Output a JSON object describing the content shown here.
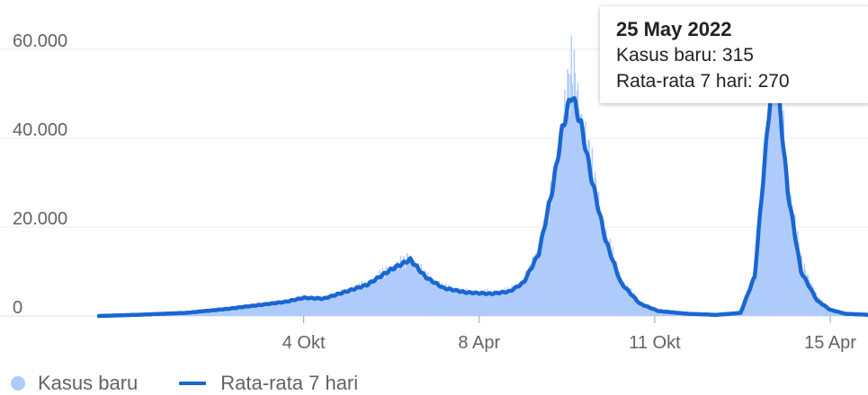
{
  "chart_data": {
    "type": "bar+line",
    "title": "",
    "xlabel": "",
    "ylabel": "",
    "ylim": [
      0,
      60000
    ],
    "y_ticks": [
      {
        "value": 0,
        "label": "0"
      },
      {
        "value": 20000,
        "label": "20.000"
      },
      {
        "value": 40000,
        "label": "40.000"
      },
      {
        "value": 60000,
        "label": "60.000"
      }
    ],
    "x_ticks": [
      {
        "date": "2020-10-04",
        "label": "4 Okt"
      },
      {
        "date": "2021-04-08",
        "label": "8 Apr"
      },
      {
        "date": "2021-10-11",
        "label": "11 Okt"
      },
      {
        "date": "2022-04-15",
        "label": "15 Apr"
      }
    ],
    "xlim": [
      "2020-03-01",
      "2022-05-25"
    ],
    "grid": true,
    "legend_placement": "bottom-left",
    "series": [
      {
        "name": "Kasus baru",
        "type": "bar",
        "color": "#aecbfa",
        "x": [
          "2020-03-01",
          "2020-04-15",
          "2020-06-01",
          "2020-07-15",
          "2020-08-15",
          "2020-09-15",
          "2020-10-04",
          "2020-10-25",
          "2020-11-15",
          "2020-12-10",
          "2021-01-05",
          "2021-01-25",
          "2021-02-10",
          "2021-03-01",
          "2021-03-25",
          "2021-04-20",
          "2021-05-10",
          "2021-05-25",
          "2021-06-10",
          "2021-06-25",
          "2021-07-05",
          "2021-07-15",
          "2021-07-25",
          "2021-08-05",
          "2021-08-20",
          "2021-09-05",
          "2021-09-25",
          "2021-10-15",
          "2021-11-15",
          "2021-12-15",
          "2022-01-10",
          "2022-01-25",
          "2022-02-05",
          "2022-02-13",
          "2022-02-20",
          "2022-03-01",
          "2022-03-15",
          "2022-04-01",
          "2022-04-15",
          "2022-05-01",
          "2022-05-25"
        ],
        "values": [
          0,
          500,
          800,
          1800,
          2500,
          3300,
          4200,
          4000,
          5500,
          7300,
          11000,
          13000,
          9000,
          6500,
          5500,
          5300,
          5800,
          8000,
          15000,
          30000,
          44000,
          56500,
          44000,
          33000,
          18000,
          8000,
          3000,
          1200,
          600,
          300,
          900,
          10000,
          38000,
          57000,
          50000,
          30000,
          12000,
          4000,
          1500,
          600,
          315
        ]
      },
      {
        "name": "Rata-rata 7 hari",
        "type": "line",
        "color": "#1a66d2",
        "x": [
          "2020-03-01",
          "2020-04-15",
          "2020-06-01",
          "2020-07-15",
          "2020-08-15",
          "2020-09-15",
          "2020-10-04",
          "2020-10-25",
          "2020-11-15",
          "2020-12-10",
          "2021-01-05",
          "2021-01-25",
          "2021-02-10",
          "2021-03-01",
          "2021-03-25",
          "2021-04-20",
          "2021-05-10",
          "2021-05-25",
          "2021-06-10",
          "2021-06-25",
          "2021-07-05",
          "2021-07-15",
          "2021-07-25",
          "2021-08-05",
          "2021-08-20",
          "2021-09-05",
          "2021-09-25",
          "2021-10-15",
          "2021-11-15",
          "2021-12-15",
          "2022-01-10",
          "2022-01-25",
          "2022-02-05",
          "2022-02-13",
          "2022-02-20",
          "2022-03-01",
          "2022-03-15",
          "2022-04-01",
          "2022-04-15",
          "2022-05-01",
          "2022-05-25"
        ],
        "values": [
          0,
          300,
          700,
          1600,
          2400,
          3200,
          4100,
          3900,
          5300,
          7000,
          10500,
          12700,
          8800,
          6300,
          5300,
          5000,
          5500,
          7500,
          14000,
          29000,
          42000,
          50000,
          43000,
          31000,
          17000,
          7500,
          2800,
          1100,
          500,
          250,
          700,
          9000,
          36000,
          55000,
          48000,
          28000,
          10000,
          3500,
          1400,
          500,
          270
        ]
      }
    ],
    "tooltip": {
      "date": "25 May 2022",
      "line1": "Kasus baru: 315",
      "line2": "Rata-rata 7 hari: 270"
    },
    "legend": [
      {
        "label": "Kasus baru",
        "color": "#aecbfa",
        "shape": "dot"
      },
      {
        "label": "Rata-rata 7 hari",
        "color": "#1a66d2",
        "shape": "line"
      }
    ]
  }
}
